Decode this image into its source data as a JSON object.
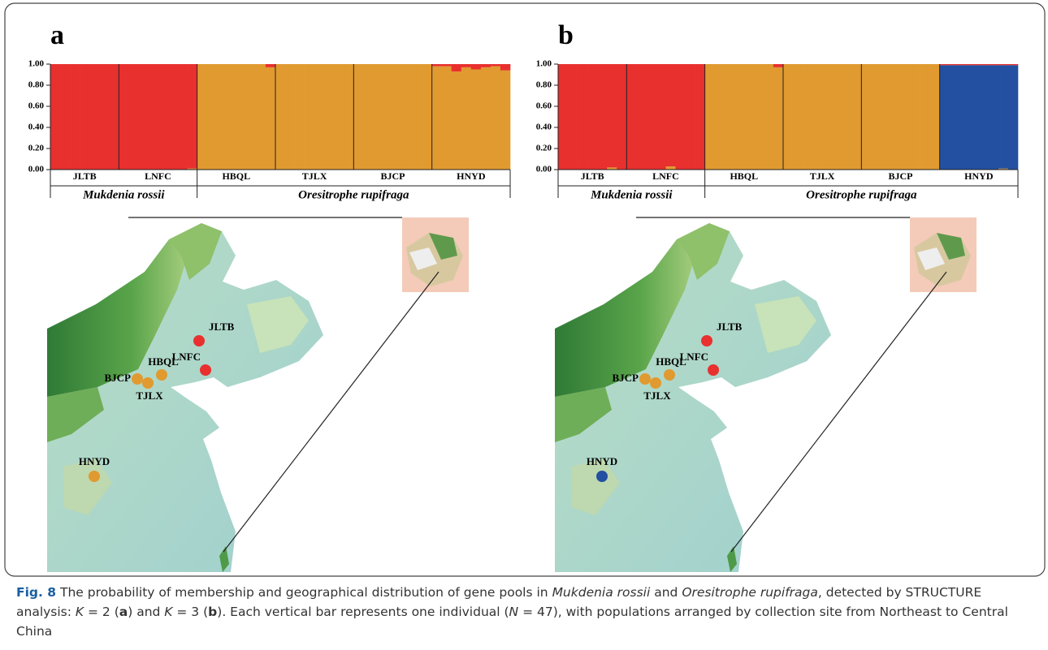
{
  "chart_data": [
    {
      "type": "structure",
      "panel": "a",
      "ylim": [
        0,
        1
      ],
      "yticks": [
        {
          "value": 0,
          "label": "0.00"
        },
        {
          "value": 0.2,
          "label": "0.20"
        },
        {
          "value": 0.4,
          "label": "0.40"
        },
        {
          "value": 0.6,
          "label": "0.60"
        },
        {
          "value": 0.8,
          "label": "0.80"
        },
        {
          "value": 1,
          "label": "1.00"
        }
      ],
      "populations": [
        {
          "label": "JLTB",
          "size": 7
        },
        {
          "label": "LNFC",
          "size": 8
        },
        {
          "label": "HBQL",
          "size": 8
        },
        {
          "label": "TJLX",
          "size": 8
        },
        {
          "label": "BJCP",
          "size": 8
        },
        {
          "label": "HNYD",
          "size": 8
        }
      ],
      "species": [
        {
          "label": "Mukdenia rossii",
          "populations": 2
        },
        {
          "label": "Oresitrophe rupifraga",
          "populations": 4
        }
      ],
      "series": [
        {
          "color": "#e09a30",
          "values": [
            0,
            0,
            0,
            0,
            0,
            0,
            0,
            0,
            0,
            0,
            0,
            0,
            0,
            0,
            0.01,
            1,
            1,
            1,
            1,
            1,
            1,
            1,
            0.97,
            1,
            1,
            1,
            1,
            1,
            1,
            1,
            1,
            1,
            1,
            1,
            1,
            1,
            1,
            1,
            1,
            0.98,
            0.98,
            0.93,
            0.97,
            0.95,
            0.97,
            0.98,
            0.94
          ]
        },
        {
          "color": "#e8302e",
          "values": [
            1,
            1,
            1,
            1,
            1,
            1,
            1,
            1,
            1,
            1,
            1,
            1,
            1,
            1,
            0.99,
            0,
            0,
            0,
            0,
            0,
            0,
            0,
            0.03,
            0,
            0,
            0,
            0,
            0,
            0,
            0,
            0,
            0,
            0,
            0,
            0,
            0,
            0,
            0,
            0,
            0.02,
            0.02,
            0.07,
            0.03,
            0.05,
            0.03,
            0.02,
            0.06
          ]
        }
      ],
      "sites": [
        {
          "label": "JLTB",
          "color": "#e8302e"
        },
        {
          "label": "LNFC",
          "color": "#e8302e"
        },
        {
          "label": "HBQL",
          "color": "#e09a30"
        },
        {
          "label": "BJCP",
          "color": "#e09a30"
        },
        {
          "label": "TJLX",
          "color": "#e09a30"
        },
        {
          "label": "HNYD",
          "color": "#e09a30"
        }
      ]
    },
    {
      "type": "structure",
      "panel": "b",
      "ylim": [
        0,
        1
      ],
      "yticks": [
        {
          "value": 0,
          "label": "0.00"
        },
        {
          "value": 0.2,
          "label": "0.20"
        },
        {
          "value": 0.4,
          "label": "0.40"
        },
        {
          "value": 0.6,
          "label": "0.60"
        },
        {
          "value": 0.8,
          "label": "0.80"
        },
        {
          "value": 1,
          "label": "1.00"
        }
      ],
      "populations": [
        {
          "label": "JLTB",
          "size": 7
        },
        {
          "label": "LNFC",
          "size": 8
        },
        {
          "label": "HBQL",
          "size": 8
        },
        {
          "label": "TJLX",
          "size": 8
        },
        {
          "label": "BJCP",
          "size": 8
        },
        {
          "label": "HNYD",
          "size": 8
        }
      ],
      "species": [
        {
          "label": "Mukdenia rossii",
          "populations": 2
        },
        {
          "label": "Oresitrophe rupifraga",
          "populations": 4
        }
      ],
      "series": [
        {
          "color": "#e09a30",
          "values": [
            0,
            0,
            0,
            0,
            0,
            0.02,
            0,
            0,
            0,
            0,
            0,
            0.03,
            0,
            0,
            0,
            1,
            1,
            1,
            1,
            1,
            1,
            1,
            0.97,
            1,
            1,
            1,
            1,
            1,
            1,
            1,
            1,
            1,
            1,
            1,
            1,
            1,
            1,
            1,
            1,
            0,
            0,
            0,
            0,
            0,
            0,
            0.01,
            0
          ]
        },
        {
          "color": "#2350a0",
          "values": [
            0,
            0,
            0,
            0,
            0,
            0,
            0,
            0,
            0,
            0,
            0,
            0,
            0,
            0,
            0,
            0,
            0,
            0,
            0,
            0,
            0,
            0,
            0,
            0,
            0,
            0,
            0,
            0,
            0,
            0,
            0,
            0,
            0,
            0,
            0,
            0,
            0,
            0,
            0,
            0.99,
            0.99,
            0.99,
            0.99,
            0.99,
            0.99,
            0.98,
            0.99
          ]
        },
        {
          "color": "#e8302e",
          "values": [
            1,
            1,
            1,
            1,
            1,
            0.98,
            1,
            1,
            1,
            1,
            1,
            0.97,
            1,
            1,
            1,
            0,
            0,
            0,
            0,
            0,
            0,
            0,
            0.03,
            0,
            0,
            0,
            0,
            0,
            0,
            0,
            0,
            0,
            0,
            0,
            0,
            0,
            0,
            0,
            0,
            0.01,
            0.01,
            0.01,
            0.01,
            0.01,
            0.01,
            0.01,
            0.01
          ]
        }
      ],
      "sites": [
        {
          "label": "JLTB",
          "color": "#e8302e"
        },
        {
          "label": "LNFC",
          "color": "#e8302e"
        },
        {
          "label": "HBQL",
          "color": "#e09a30"
        },
        {
          "label": "BJCP",
          "color": "#e09a30"
        },
        {
          "label": "TJLX",
          "color": "#e09a30"
        },
        {
          "label": "HNYD",
          "color": "#2350a0"
        }
      ]
    }
  ],
  "caption": {
    "label": "Fig. 8",
    "runs": [
      {
        "text": "The probability of membership and geographical distribution of gene pools in "
      },
      {
        "text": "Mukdenia rossii",
        "style": "italic"
      },
      {
        "text": " and "
      },
      {
        "text": "Oresitrophe rupifraga",
        "style": "italic"
      },
      {
        "text": ", detected by STRUCTURE analysis: "
      },
      {
        "text": "K",
        "style": "italic"
      },
      {
        "text": " = 2 ("
      },
      {
        "text": "a",
        "style": "bold"
      },
      {
        "text": ") and "
      },
      {
        "text": "K",
        "style": "italic"
      },
      {
        "text": " = 3 ("
      },
      {
        "text": "b",
        "style": "bold"
      },
      {
        "text": "). Each vertical bar represents one individual ("
      },
      {
        "text": "N",
        "style": "italic"
      },
      {
        "text": " = 47), with populations arranged by collection site from Northeast to Central China"
      }
    ]
  }
}
